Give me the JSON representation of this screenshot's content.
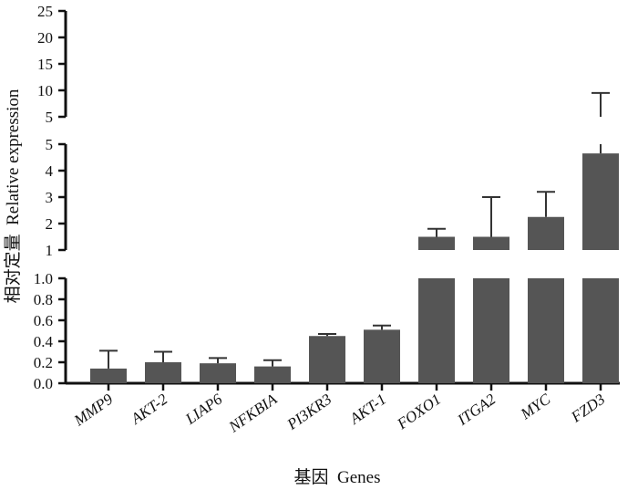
{
  "colors": {
    "bar": "#555555",
    "axis": "#111111",
    "error": "#333333"
  },
  "chart_data": {
    "type": "bar",
    "title": "",
    "xlabel": "基因  Genes",
    "ylabel": "相对定量  Relative expression",
    "y_axis_breaks": true,
    "y_segments": [
      {
        "range": [
          0,
          1.0
        ],
        "ticks": [
          "0.0",
          "0.2",
          "0.4",
          "0.6",
          "0.8",
          "1.0"
        ]
      },
      {
        "range": [
          1,
          5
        ],
        "ticks": [
          "1",
          "2",
          "3",
          "4",
          "5"
        ]
      },
      {
        "range": [
          5,
          25
        ],
        "ticks": [
          "5",
          "10",
          "15",
          "20",
          "25"
        ]
      }
    ],
    "categories": [
      "MMP9",
      "AKT-2",
      "LIAP6",
      "NFKBIA",
      "PI3KR3",
      "AKT-1",
      "FOXO1",
      "ITGA2",
      "MYC",
      "FZD3"
    ],
    "values": [
      0.14,
      0.2,
      0.19,
      0.16,
      0.45,
      0.51,
      1.5,
      1.5,
      2.25,
      4.65
    ],
    "error_upper": [
      0.31,
      0.3,
      0.24,
      0.22,
      0.47,
      0.55,
      1.8,
      3.0,
      3.2,
      9.5
    ],
    "grid": false,
    "legend": "none"
  }
}
